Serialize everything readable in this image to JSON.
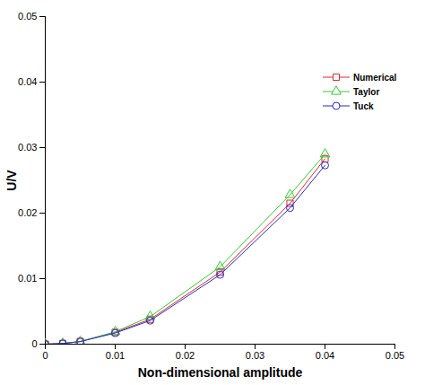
{
  "chart_data": {
    "type": "line",
    "x_label": "Non-dimensional amplitude",
    "y_label": "U/V",
    "x": [
      0,
      0.0025,
      0.005,
      0.01,
      0.015,
      0.025,
      0.035,
      0.04
    ],
    "series": [
      {
        "name": "Numerical",
        "color": "#e8262a",
        "marker": "square",
        "values": [
          0,
          0.0001,
          0.0004,
          0.0018,
          0.0038,
          0.011,
          0.0215,
          0.0283
        ]
      },
      {
        "name": "Taylor",
        "color": "#2fcc2f",
        "marker": "triangle",
        "values": [
          0,
          0.0001,
          0.0004,
          0.0019,
          0.0042,
          0.0118,
          0.0228,
          0.029
        ]
      },
      {
        "name": "Tuck",
        "color": "#2b2bd9",
        "marker": "circle",
        "values": [
          0,
          0.0001,
          0.0004,
          0.0017,
          0.0036,
          0.0106,
          0.0208,
          0.0273
        ]
      }
    ],
    "xlim": [
      0,
      0.05
    ],
    "xticks": [
      0,
      0.01,
      0.02,
      0.03,
      0.04,
      0.05
    ],
    "ylim": [
      0,
      0.05
    ],
    "yticks": [
      0,
      0.01,
      0.02,
      0.03,
      0.04,
      0.05
    ],
    "grid": false,
    "legend": "upper right"
  }
}
